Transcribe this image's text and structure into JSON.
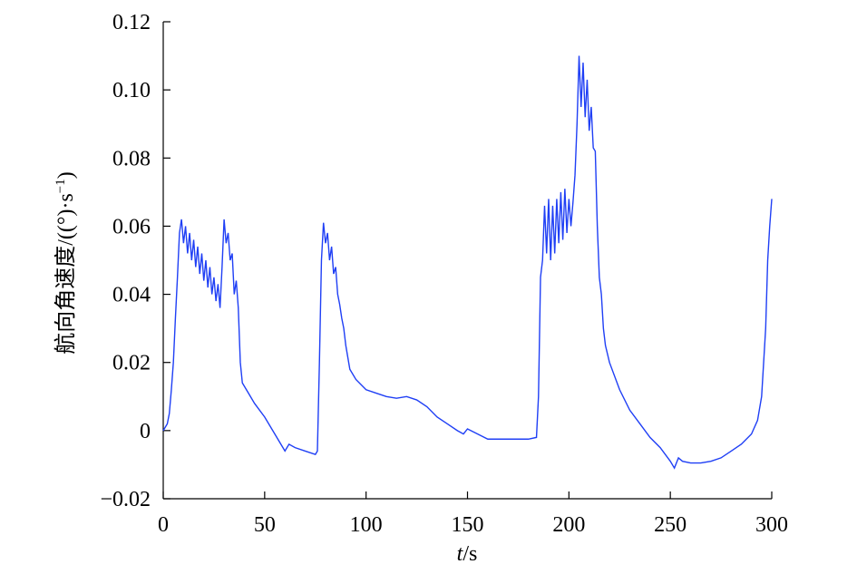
{
  "chart_data": {
    "type": "line",
    "ylabel": "航向角速度/((°)·s",
    "ylabel_sup": "−1",
    "ylabel_end": ")",
    "xlabel_var": "t",
    "xlabel_unit": "/s",
    "xlim": [
      0,
      300
    ],
    "xticks": [
      0,
      50,
      100,
      150,
      200,
      250,
      300
    ],
    "ylim": [
      -0.02,
      0.12
    ],
    "yticks": [
      {
        "value": -0.02,
        "label": "−0.02"
      },
      0,
      0.02,
      0.04,
      0.06,
      0.08,
      {
        "value": 0.1,
        "label": "0.10"
      },
      0.12
    ],
    "series": [
      {
        "color": "#1f3ff5",
        "x": [
          0,
          2,
          3,
          4,
          5,
          6,
          7,
          8,
          9,
          10,
          11,
          12,
          13,
          14,
          15,
          16,
          17,
          18,
          19,
          20,
          21,
          22,
          23,
          24,
          25,
          26,
          27,
          28,
          29,
          30,
          31,
          32,
          33,
          34,
          35,
          36,
          37,
          38,
          39,
          42,
          45,
          50,
          55,
          58,
          60,
          62,
          65,
          70,
          75,
          76,
          77,
          78,
          79,
          80,
          81,
          82,
          83,
          84,
          85,
          86,
          87,
          88,
          89,
          90,
          92,
          95,
          100,
          105,
          110,
          115,
          120,
          125,
          130,
          135,
          140,
          145,
          148,
          150,
          155,
          160,
          170,
          180,
          184,
          185,
          186,
          187,
          188,
          189,
          190,
          191,
          192,
          193,
          194,
          195,
          196,
          197,
          198,
          199,
          200,
          201,
          202,
          203,
          204,
          205,
          206,
          207,
          208,
          209,
          210,
          211,
          212,
          213,
          214,
          215,
          216,
          217,
          218,
          220,
          225,
          230,
          235,
          240,
          245,
          250,
          252,
          254,
          256,
          260,
          265,
          270,
          275,
          280,
          285,
          290,
          293,
          295,
          297,
          298,
          299,
          300
        ],
        "values": [
          0,
          0.002,
          0.005,
          0.012,
          0.02,
          0.033,
          0.045,
          0.058,
          0.062,
          0.055,
          0.06,
          0.052,
          0.058,
          0.05,
          0.056,
          0.048,
          0.054,
          0.046,
          0.052,
          0.044,
          0.05,
          0.042,
          0.048,
          0.04,
          0.045,
          0.038,
          0.043,
          0.036,
          0.048,
          0.062,
          0.055,
          0.058,
          0.05,
          0.052,
          0.04,
          0.044,
          0.036,
          0.02,
          0.014,
          0.011,
          0.008,
          0.004,
          -0.001,
          -0.004,
          -0.006,
          -0.004,
          -0.005,
          -0.006,
          -0.007,
          -0.006,
          0.02,
          0.05,
          0.061,
          0.055,
          0.058,
          0.05,
          0.054,
          0.046,
          0.048,
          0.04,
          0.037,
          0.033,
          0.03,
          0.025,
          0.018,
          0.015,
          0.012,
          0.011,
          0.01,
          0.0095,
          0.01,
          0.009,
          0.007,
          0.004,
          0.002,
          0,
          -0.001,
          0.0005,
          -0.001,
          -0.0025,
          -0.0025,
          -0.0025,
          -0.002,
          0.01,
          0.045,
          0.05,
          0.066,
          0.052,
          0.068,
          0.05,
          0.066,
          0.052,
          0.068,
          0.055,
          0.07,
          0.056,
          0.071,
          0.058,
          0.068,
          0.06,
          0.067,
          0.075,
          0.09,
          0.11,
          0.095,
          0.108,
          0.092,
          0.103,
          0.088,
          0.095,
          0.083,
          0.082,
          0.06,
          0.045,
          0.04,
          0.03,
          0.025,
          0.02,
          0.012,
          0.006,
          0.002,
          -0.002,
          -0.005,
          -0.009,
          -0.011,
          -0.008,
          -0.009,
          -0.0095,
          -0.0095,
          -0.009,
          -0.008,
          -0.006,
          -0.004,
          -0.001,
          0.003,
          0.01,
          0.03,
          0.05,
          0.06,
          0.068
        ]
      }
    ]
  }
}
